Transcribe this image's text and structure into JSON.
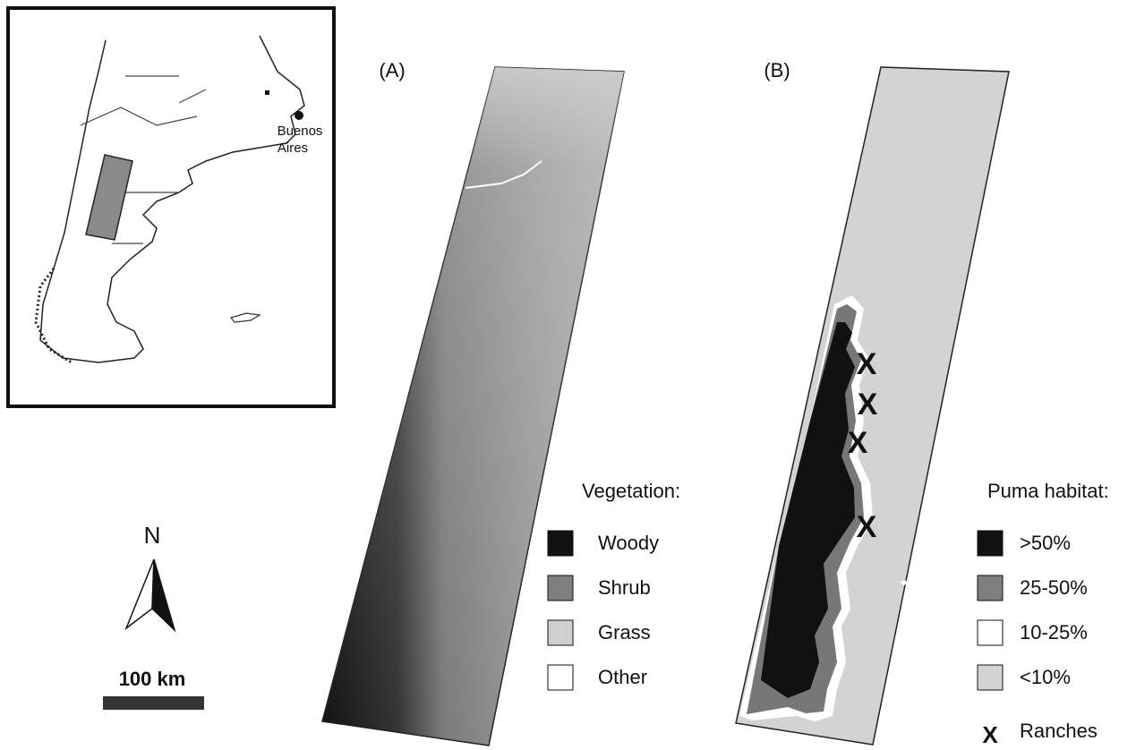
{
  "inset": {
    "city_label": [
      "Buenos",
      "Aires"
    ]
  },
  "panels": [
    {
      "label": "(A)",
      "legend_title": "Vegetation:",
      "legend": [
        "Woody",
        "Shrub",
        "Grass",
        "Other"
      ]
    },
    {
      "label": "(B)",
      "legend_title": "Puma habitat:",
      "legend": [
        ">50%",
        "25-50%",
        "10-25%",
        "<10%"
      ],
      "ranch_marker": "X",
      "ranch_label": "Ranches"
    }
  ],
  "north_arrow": "N",
  "scale_bar": "100 km"
}
